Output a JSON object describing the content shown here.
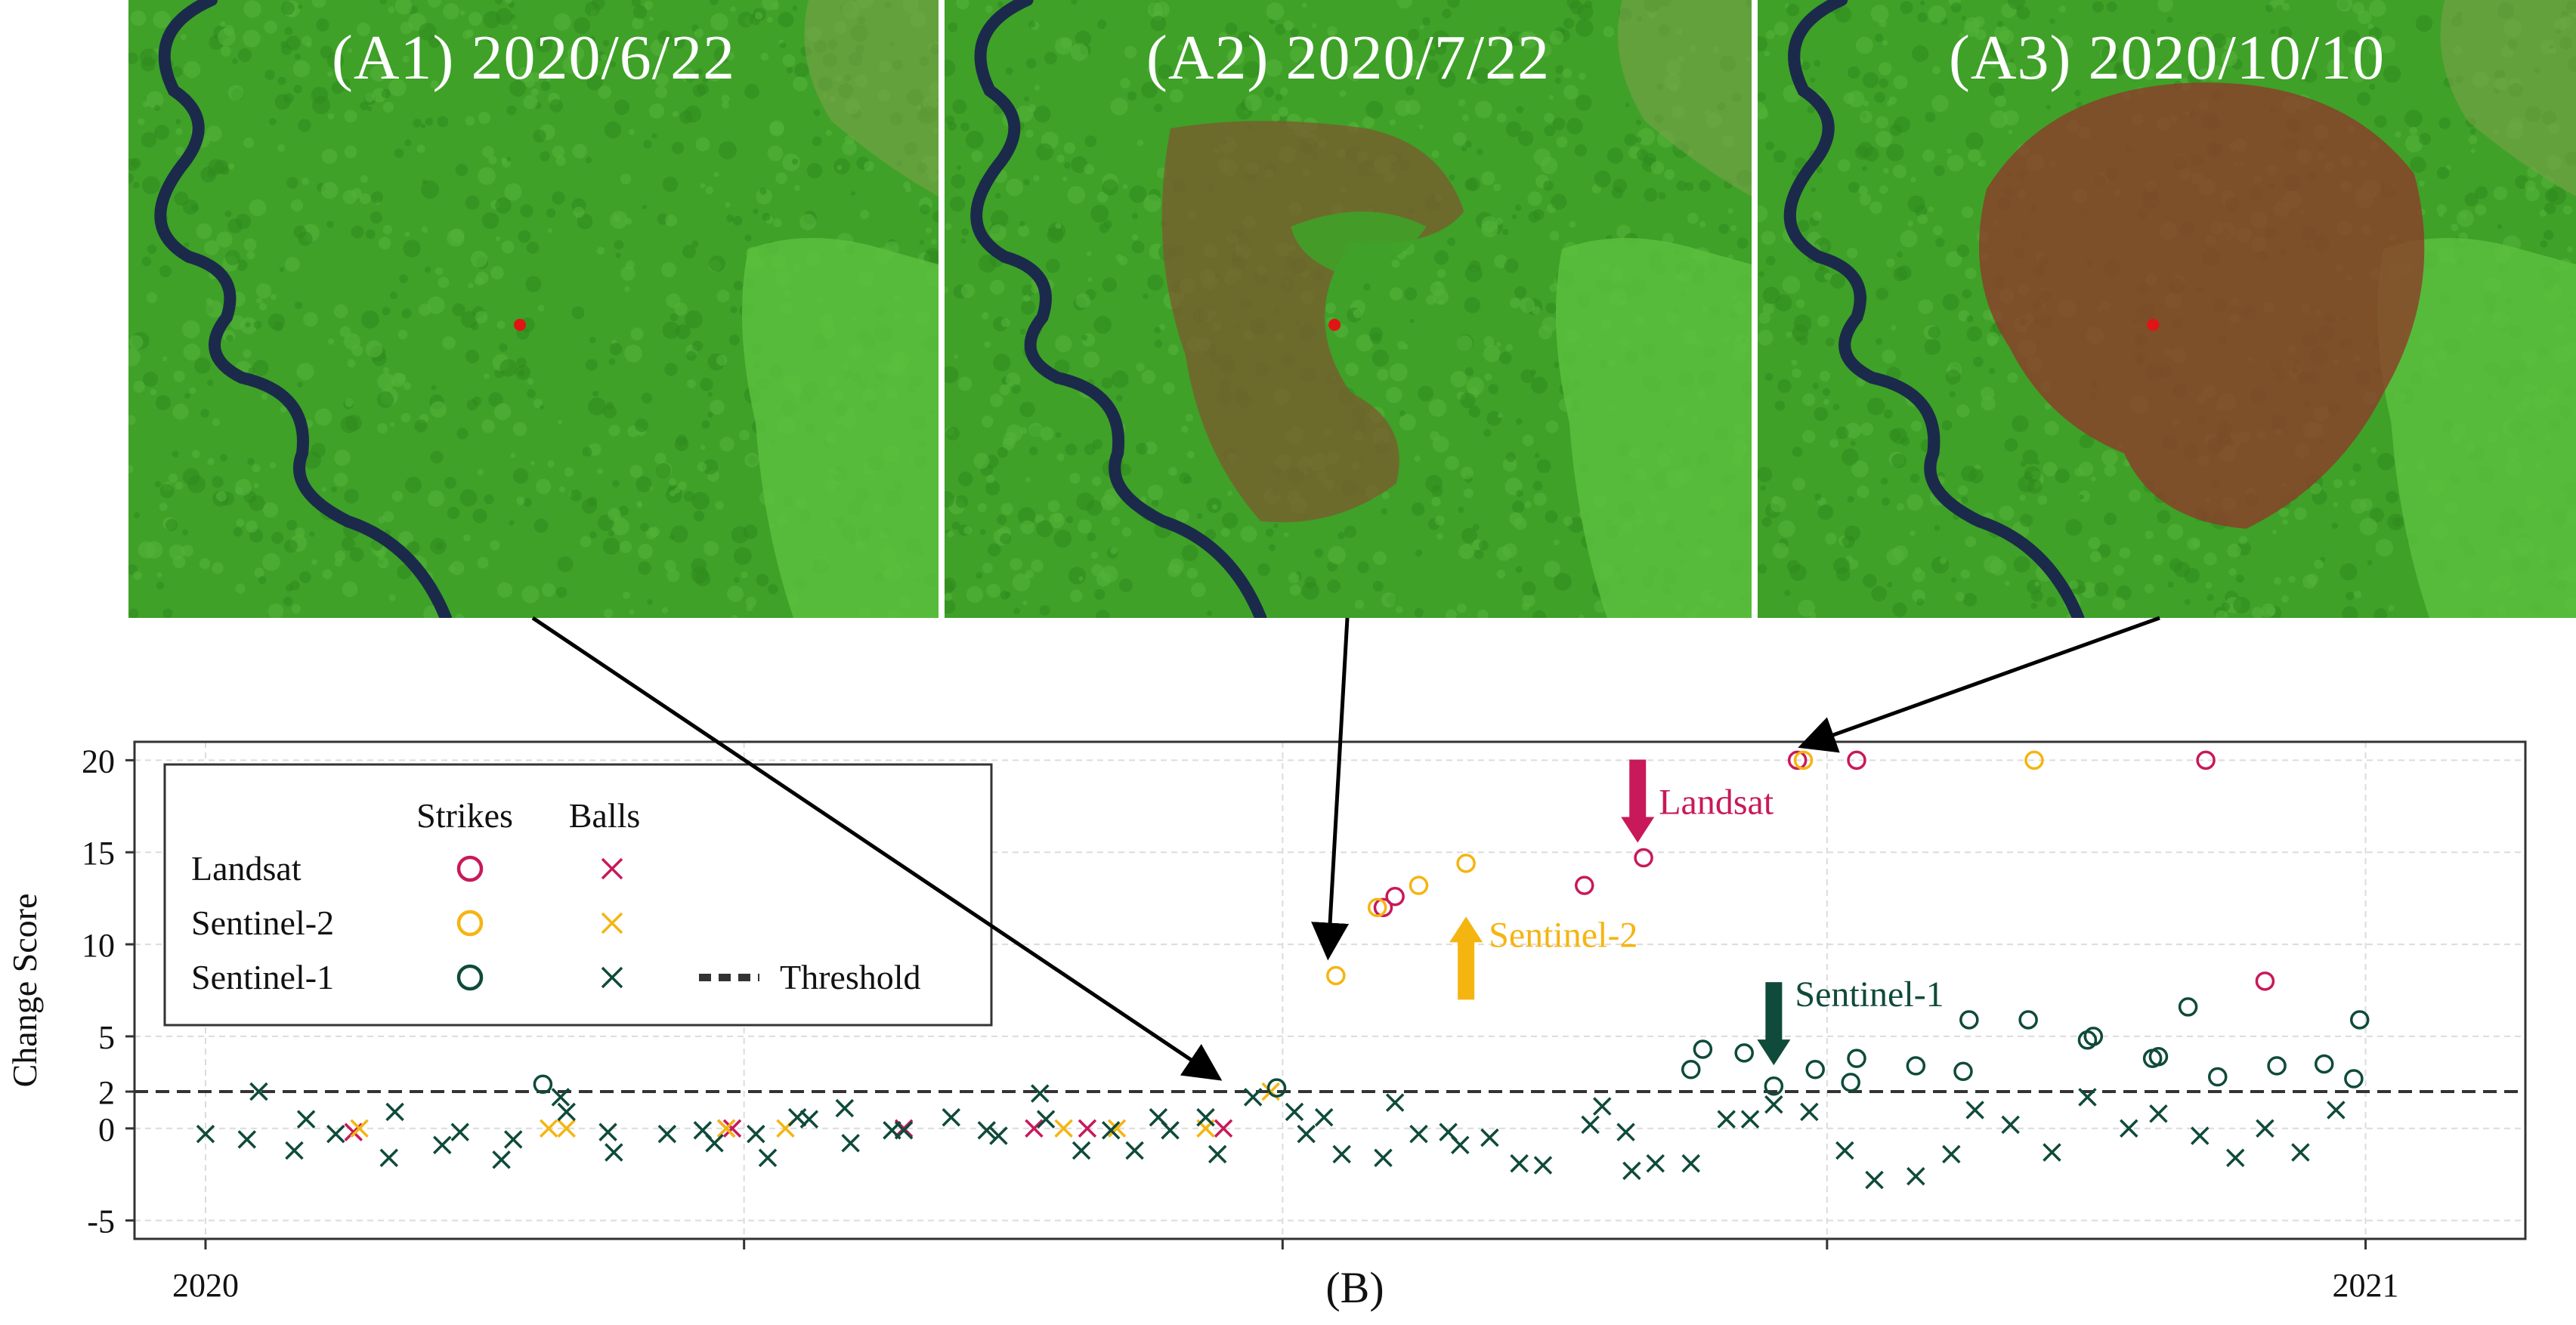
{
  "panels": [
    {
      "id": "A1",
      "title": "(A1) 2020/6/22",
      "disturbed": 0
    },
    {
      "id": "A2",
      "title": "(A2) 2020/7/22",
      "disturbed": 1
    },
    {
      "id": "A3",
      "title": "(A3) 2020/10/10",
      "disturbed": 2
    }
  ],
  "colors": {
    "landsat": "#c8195a",
    "sentinel2": "#f5b511",
    "sentinel1": "#0f4a3a",
    "threshold": "#333333",
    "axis": "#333333",
    "grid": "#dcdcdc",
    "vegetation": "#3fa128",
    "clearing": "#7a5c2e",
    "burn": "#8e3a2a",
    "river": "#1b2a4a",
    "marker": "#e01414"
  },
  "chart_data": {
    "type": "scatter",
    "caption": "(B)",
    "ylabel": "Change Score",
    "xlim": [
      "2019-12-20",
      "2021-01-27"
    ],
    "ylim": [
      -6,
      21
    ],
    "threshold": 2,
    "xticks": [
      {
        "date": "2020-01-01",
        "label": "2020"
      },
      {
        "date": "2020-04-01",
        "label": ""
      },
      {
        "date": "2020-07-01",
        "label": ""
      },
      {
        "date": "2020-10-01",
        "label": ""
      },
      {
        "date": "2020-12-31",
        "label": "2021"
      }
    ],
    "yticks": [
      {
        "value": 20,
        "label": "20"
      },
      {
        "value": 15,
        "label": "15"
      },
      {
        "value": 10,
        "label": "10"
      },
      {
        "value": 5,
        "label": "5"
      },
      {
        "value": 2,
        "label": "2"
      },
      {
        "value": 0,
        "label": "0"
      },
      {
        "value": -5,
        "label": "-5"
      }
    ],
    "legend": {
      "col_strikes": "Strikes",
      "col_balls": "Balls",
      "rows": [
        "Landsat",
        "Sentinel-2",
        "Sentinel-1"
      ],
      "threshold_label": "Threshold",
      "position": "top-left"
    },
    "annotations": [
      {
        "label": "Landsat",
        "series": "landsat",
        "x": "2020-08-30",
        "y": 14.7,
        "direction": "down"
      },
      {
        "label": "Sentinel-2",
        "series": "sentinel2",
        "x": "2020-08-01",
        "y": 12.0,
        "direction": "up"
      },
      {
        "label": "Sentinel-1",
        "series": "sentinel1",
        "x": "2020-09-22",
        "y": 2.2,
        "direction": "down"
      }
    ],
    "series": [
      {
        "name": "Landsat",
        "key": "landsat",
        "marker": "strike",
        "points": [
          [
            "2020-07-18",
            12.0
          ],
          [
            "2020-07-20",
            12.6
          ],
          [
            "2020-08-21",
            13.2
          ],
          [
            "2020-08-31",
            14.7
          ],
          [
            "2020-09-26",
            20.0
          ],
          [
            "2020-10-06",
            20.0
          ],
          [
            "2020-12-04",
            20.0
          ],
          [
            "2020-12-14",
            8.0
          ]
        ]
      },
      {
        "name": "Landsat",
        "key": "landsat",
        "marker": "ball",
        "points": [
          [
            "2020-01-26",
            -0.2
          ],
          [
            "2020-03-29",
            0.0
          ],
          [
            "2020-03-30",
            0.0
          ],
          [
            "2020-04-28",
            0.0
          ],
          [
            "2020-05-20",
            0.0
          ],
          [
            "2020-05-29",
            0.0
          ],
          [
            "2020-06-21",
            0.0
          ]
        ]
      },
      {
        "name": "Sentinel-2",
        "key": "sentinel2",
        "marker": "strike",
        "points": [
          [
            "2020-07-10",
            8.3
          ],
          [
            "2020-07-17",
            12.0
          ],
          [
            "2020-07-24",
            13.2
          ],
          [
            "2020-08-01",
            14.4
          ],
          [
            "2020-09-27",
            20.0
          ],
          [
            "2020-11-05",
            20.0
          ]
        ]
      },
      {
        "name": "Sentinel-2",
        "key": "sentinel2",
        "marker": "ball",
        "points": [
          [
            "2020-01-27",
            0.0
          ],
          [
            "2020-02-28",
            0.0
          ],
          [
            "2020-03-02",
            0.0
          ],
          [
            "2020-03-29",
            0.0
          ],
          [
            "2020-04-08",
            0.0
          ],
          [
            "2020-05-25",
            0.0
          ],
          [
            "2020-06-03",
            0.0
          ],
          [
            "2020-06-18",
            0.0
          ],
          [
            "2020-06-29",
            2.0
          ]
        ]
      },
      {
        "name": "Sentinel-1",
        "key": "sentinel1",
        "marker": "strike",
        "points": [
          [
            "2020-02-27",
            2.4
          ],
          [
            "2020-06-30",
            2.2
          ],
          [
            "2020-09-08",
            3.2
          ],
          [
            "2020-09-10",
            4.3
          ],
          [
            "2020-09-17",
            4.1
          ],
          [
            "2020-09-22",
            2.3
          ],
          [
            "2020-09-29",
            3.2
          ],
          [
            "2020-10-05",
            2.5
          ],
          [
            "2020-10-06",
            3.8
          ],
          [
            "2020-10-16",
            3.4
          ],
          [
            "2020-10-24",
            3.1
          ],
          [
            "2020-10-25",
            5.9
          ],
          [
            "2020-11-04",
            5.9
          ],
          [
            "2020-11-14",
            4.8
          ],
          [
            "2020-11-15",
            5.0
          ],
          [
            "2020-11-25",
            3.8
          ],
          [
            "2020-11-26",
            3.9
          ],
          [
            "2020-12-01",
            6.6
          ],
          [
            "2020-12-06",
            2.8
          ],
          [
            "2020-12-16",
            3.4
          ],
          [
            "2020-12-24",
            3.5
          ],
          [
            "2020-12-29",
            2.7
          ],
          [
            "2020-12-30",
            5.9
          ]
        ]
      },
      {
        "name": "Sentinel-1",
        "key": "sentinel1",
        "marker": "ball",
        "points": [
          [
            "2020-01-01",
            -0.3
          ],
          [
            "2020-01-08",
            -0.6
          ],
          [
            "2020-01-10",
            2.0
          ],
          [
            "2020-01-16",
            -1.2
          ],
          [
            "2020-01-18",
            0.5
          ],
          [
            "2020-01-23",
            -0.3
          ],
          [
            "2020-02-01",
            -1.6
          ],
          [
            "2020-02-02",
            0.9
          ],
          [
            "2020-02-10",
            -0.9
          ],
          [
            "2020-02-13",
            -0.2
          ],
          [
            "2020-02-20",
            -1.7
          ],
          [
            "2020-02-22",
            -0.6
          ],
          [
            "2020-03-01",
            1.7
          ],
          [
            "2020-03-02",
            0.9
          ],
          [
            "2020-03-09",
            -0.2
          ],
          [
            "2020-03-10",
            -1.3
          ],
          [
            "2020-03-19",
            -0.3
          ],
          [
            "2020-03-25",
            -0.1
          ],
          [
            "2020-03-27",
            -0.8
          ],
          [
            "2020-04-03",
            -0.3
          ],
          [
            "2020-04-05",
            -1.6
          ],
          [
            "2020-04-10",
            0.6
          ],
          [
            "2020-04-12",
            0.5
          ],
          [
            "2020-04-18",
            1.1
          ],
          [
            "2020-04-19",
            -0.8
          ],
          [
            "2020-04-26",
            -0.1
          ],
          [
            "2020-04-28",
            -0.1
          ],
          [
            "2020-05-06",
            0.6
          ],
          [
            "2020-05-12",
            -0.1
          ],
          [
            "2020-05-14",
            -0.4
          ],
          [
            "2020-05-21",
            1.9
          ],
          [
            "2020-05-22",
            0.5
          ],
          [
            "2020-05-28",
            -1.2
          ],
          [
            "2020-06-02",
            -0.1
          ],
          [
            "2020-06-06",
            -1.2
          ],
          [
            "2020-06-10",
            0.6
          ],
          [
            "2020-06-12",
            -0.1
          ],
          [
            "2020-06-18",
            0.6
          ],
          [
            "2020-06-20",
            -1.4
          ],
          [
            "2020-06-26",
            1.7
          ],
          [
            "2020-07-03",
            0.9
          ],
          [
            "2020-07-05",
            -0.3
          ],
          [
            "2020-07-08",
            0.6
          ],
          [
            "2020-07-11",
            -1.4
          ],
          [
            "2020-07-18",
            -1.6
          ],
          [
            "2020-07-20",
            1.4
          ],
          [
            "2020-07-24",
            -0.3
          ],
          [
            "2020-07-29",
            -0.2
          ],
          [
            "2020-07-31",
            -0.9
          ],
          [
            "2020-08-05",
            -0.5
          ],
          [
            "2020-08-10",
            -1.9
          ],
          [
            "2020-08-14",
            -2.0
          ],
          [
            "2020-08-22",
            0.2
          ],
          [
            "2020-08-24",
            1.2
          ],
          [
            "2020-08-28",
            -0.2
          ],
          [
            "2020-08-29",
            -2.3
          ],
          [
            "2020-09-02",
            -1.9
          ],
          [
            "2020-09-08",
            -1.9
          ],
          [
            "2020-09-14",
            0.5
          ],
          [
            "2020-09-18",
            0.5
          ],
          [
            "2020-09-22",
            1.3
          ],
          [
            "2020-09-28",
            0.9
          ],
          [
            "2020-10-04",
            -1.2
          ],
          [
            "2020-10-09",
            -2.8
          ],
          [
            "2020-10-16",
            -2.6
          ],
          [
            "2020-10-22",
            -1.4
          ],
          [
            "2020-10-26",
            1.0
          ],
          [
            "2020-11-01",
            0.2
          ],
          [
            "2020-11-08",
            -1.3
          ],
          [
            "2020-11-14",
            1.7
          ],
          [
            "2020-11-21",
            0.0
          ],
          [
            "2020-11-26",
            0.8
          ],
          [
            "2020-12-03",
            -0.4
          ],
          [
            "2020-12-09",
            -1.6
          ],
          [
            "2020-12-14",
            0.0
          ],
          [
            "2020-12-20",
            -1.3
          ],
          [
            "2020-12-26",
            1.0
          ]
        ]
      }
    ]
  }
}
